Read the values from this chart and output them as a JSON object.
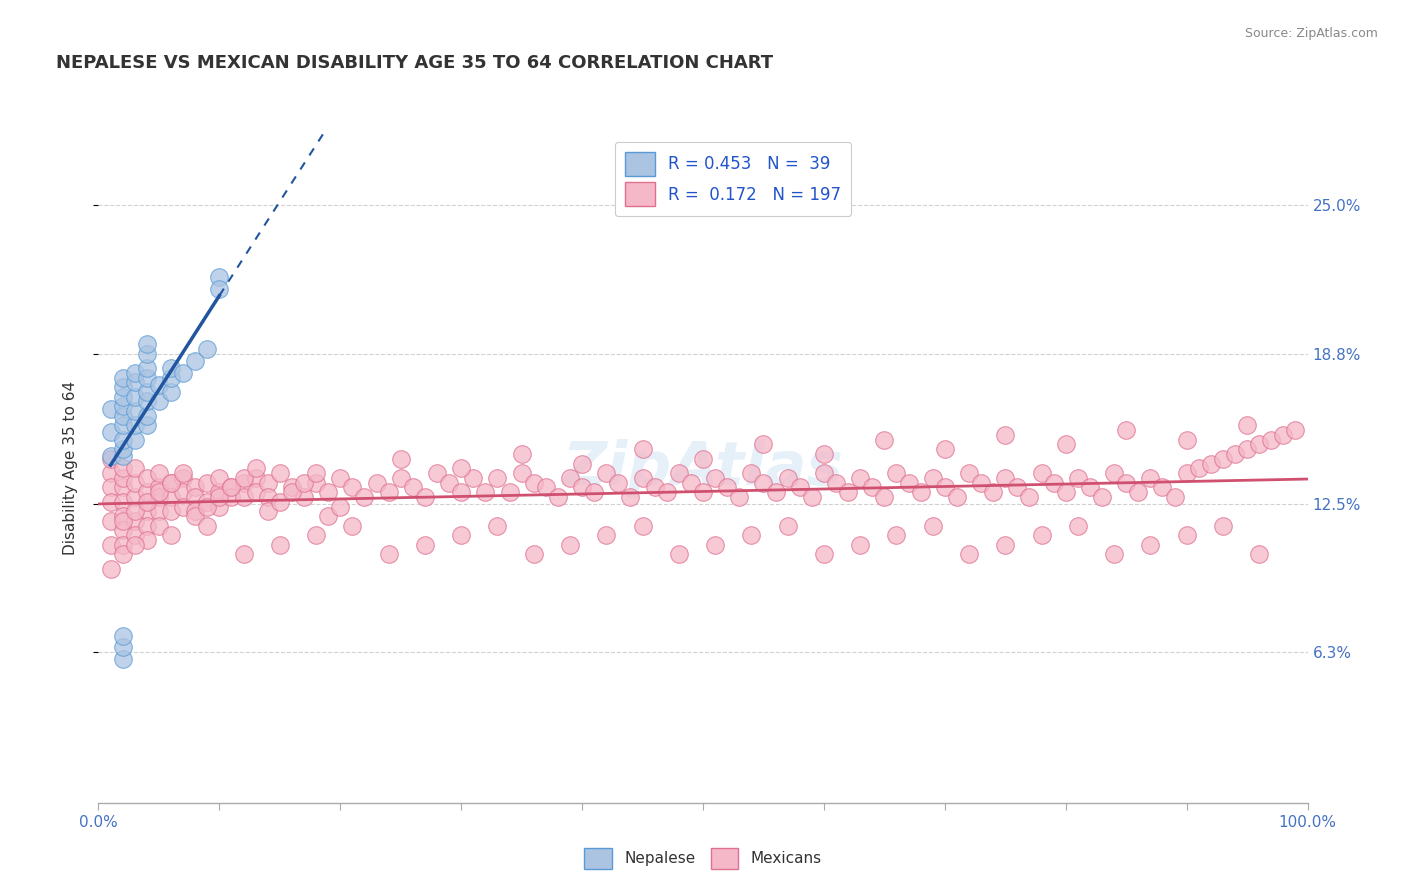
{
  "title": "NEPALESE VS MEXICAN DISABILITY AGE 35 TO 64 CORRELATION CHART",
  "source_text": "Source: ZipAtlas.com",
  "ylabel": "Disability Age 35 to 64",
  "xmin": 0.0,
  "xmax": 1.0,
  "ymin": 0.0,
  "ymax": 0.28,
  "ytick_vals": [
    0.063,
    0.125,
    0.188,
    0.25
  ],
  "ytick_labels": [
    "6.3%",
    "12.5%",
    "18.8%",
    "25.0%"
  ],
  "xtick_vals": [
    0.0,
    0.1,
    0.2,
    0.3,
    0.4,
    0.5,
    0.6,
    0.7,
    0.8,
    0.9,
    1.0
  ],
  "xlabels_show": {
    "0.0": "0.0%",
    "1.0": "100.0%"
  },
  "nepalese_color": "#aac4e2",
  "nepalese_edge_color": "#5b9bd5",
  "mexican_color": "#f4b8c8",
  "mexican_edge_color": "#e07090",
  "nepalese_R": 0.453,
  "nepalese_N": 39,
  "mexican_R": 0.172,
  "mexican_N": 197,
  "blue_line_color": "#2255a0",
  "pink_line_color": "#d05070",
  "legend_text_color": "#2255cc",
  "title_color": "#333333",
  "grid_color": "#cccccc",
  "background_color": "#ffffff",
  "nepalese_x": [
    0.01,
    0.01,
    0.01,
    0.02,
    0.02,
    0.02,
    0.02,
    0.02,
    0.02,
    0.02,
    0.02,
    0.02,
    0.02,
    0.03,
    0.03,
    0.03,
    0.03,
    0.03,
    0.03,
    0.04,
    0.04,
    0.04,
    0.04,
    0.04,
    0.04,
    0.04,
    0.04,
    0.05,
    0.05,
    0.06,
    0.06,
    0.06,
    0.07,
    0.08,
    0.09,
    0.1,
    0.1,
    0.02,
    0.02
  ],
  "nepalese_y": [
    0.145,
    0.155,
    0.165,
    0.145,
    0.148,
    0.152,
    0.158,
    0.162,
    0.166,
    0.17,
    0.174,
    0.178,
    0.06,
    0.152,
    0.158,
    0.164,
    0.17,
    0.176,
    0.18,
    0.158,
    0.162,
    0.168,
    0.172,
    0.178,
    0.182,
    0.188,
    0.192,
    0.168,
    0.175,
    0.172,
    0.178,
    0.182,
    0.18,
    0.185,
    0.19,
    0.22,
    0.215,
    0.065,
    0.07
  ],
  "mexican_x": [
    0.01,
    0.01,
    0.01,
    0.01,
    0.01,
    0.01,
    0.01,
    0.02,
    0.02,
    0.02,
    0.02,
    0.02,
    0.02,
    0.02,
    0.02,
    0.03,
    0.03,
    0.03,
    0.03,
    0.03,
    0.04,
    0.04,
    0.04,
    0.04,
    0.04,
    0.05,
    0.05,
    0.05,
    0.05,
    0.05,
    0.06,
    0.06,
    0.06,
    0.07,
    0.07,
    0.07,
    0.08,
    0.08,
    0.08,
    0.09,
    0.09,
    0.1,
    0.1,
    0.1,
    0.11,
    0.11,
    0.12,
    0.12,
    0.13,
    0.13,
    0.14,
    0.14,
    0.15,
    0.16,
    0.17,
    0.18,
    0.19,
    0.2,
    0.21,
    0.22,
    0.23,
    0.24,
    0.25,
    0.26,
    0.27,
    0.28,
    0.29,
    0.3,
    0.31,
    0.32,
    0.33,
    0.34,
    0.35,
    0.36,
    0.37,
    0.38,
    0.39,
    0.4,
    0.41,
    0.42,
    0.43,
    0.44,
    0.45,
    0.46,
    0.47,
    0.48,
    0.49,
    0.5,
    0.51,
    0.52,
    0.53,
    0.54,
    0.55,
    0.56,
    0.57,
    0.58,
    0.59,
    0.6,
    0.61,
    0.62,
    0.63,
    0.64,
    0.65,
    0.66,
    0.67,
    0.68,
    0.69,
    0.7,
    0.71,
    0.72,
    0.73,
    0.74,
    0.75,
    0.76,
    0.77,
    0.78,
    0.79,
    0.8,
    0.81,
    0.82,
    0.83,
    0.84,
    0.85,
    0.86,
    0.87,
    0.88,
    0.89,
    0.9,
    0.91,
    0.92,
    0.93,
    0.94,
    0.95,
    0.96,
    0.97,
    0.98,
    0.99,
    0.02,
    0.03,
    0.04,
    0.05,
    0.06,
    0.07,
    0.08,
    0.09,
    0.1,
    0.11,
    0.12,
    0.13,
    0.14,
    0.15,
    0.16,
    0.17,
    0.18,
    0.19,
    0.2,
    0.25,
    0.3,
    0.35,
    0.4,
    0.45,
    0.5,
    0.55,
    0.6,
    0.65,
    0.7,
    0.75,
    0.8,
    0.85,
    0.9,
    0.95,
    0.03,
    0.06,
    0.09,
    0.12,
    0.15,
    0.18,
    0.21,
    0.24,
    0.27,
    0.3,
    0.33,
    0.36,
    0.39,
    0.42,
    0.45,
    0.48,
    0.51,
    0.54,
    0.57,
    0.6,
    0.63,
    0.66,
    0.69,
    0.72,
    0.75,
    0.78,
    0.81,
    0.84,
    0.87,
    0.9,
    0.93,
    0.96
  ],
  "mexican_y": [
    0.138,
    0.132,
    0.126,
    0.144,
    0.118,
    0.108,
    0.098,
    0.132,
    0.136,
    0.14,
    0.126,
    0.12,
    0.114,
    0.108,
    0.104,
    0.128,
    0.134,
    0.14,
    0.118,
    0.112,
    0.13,
    0.136,
    0.122,
    0.116,
    0.11,
    0.132,
    0.138,
    0.128,
    0.122,
    0.116,
    0.134,
    0.128,
    0.122,
    0.136,
    0.13,
    0.124,
    0.132,
    0.128,
    0.122,
    0.134,
    0.126,
    0.13,
    0.136,
    0.124,
    0.132,
    0.128,
    0.134,
    0.128,
    0.136,
    0.13,
    0.134,
    0.128,
    0.138,
    0.132,
    0.128,
    0.134,
    0.13,
    0.136,
    0.132,
    0.128,
    0.134,
    0.13,
    0.136,
    0.132,
    0.128,
    0.138,
    0.134,
    0.13,
    0.136,
    0.13,
    0.136,
    0.13,
    0.138,
    0.134,
    0.132,
    0.128,
    0.136,
    0.132,
    0.13,
    0.138,
    0.134,
    0.128,
    0.136,
    0.132,
    0.13,
    0.138,
    0.134,
    0.13,
    0.136,
    0.132,
    0.128,
    0.138,
    0.134,
    0.13,
    0.136,
    0.132,
    0.128,
    0.138,
    0.134,
    0.13,
    0.136,
    0.132,
    0.128,
    0.138,
    0.134,
    0.13,
    0.136,
    0.132,
    0.128,
    0.138,
    0.134,
    0.13,
    0.136,
    0.132,
    0.128,
    0.138,
    0.134,
    0.13,
    0.136,
    0.132,
    0.128,
    0.138,
    0.134,
    0.13,
    0.136,
    0.132,
    0.128,
    0.138,
    0.14,
    0.142,
    0.144,
    0.146,
    0.148,
    0.15,
    0.152,
    0.154,
    0.156,
    0.118,
    0.122,
    0.126,
    0.13,
    0.134,
    0.138,
    0.12,
    0.124,
    0.128,
    0.132,
    0.136,
    0.14,
    0.122,
    0.126,
    0.13,
    0.134,
    0.138,
    0.12,
    0.124,
    0.144,
    0.14,
    0.146,
    0.142,
    0.148,
    0.144,
    0.15,
    0.146,
    0.152,
    0.148,
    0.154,
    0.15,
    0.156,
    0.152,
    0.158,
    0.108,
    0.112,
    0.116,
    0.104,
    0.108,
    0.112,
    0.116,
    0.104,
    0.108,
    0.112,
    0.116,
    0.104,
    0.108,
    0.112,
    0.116,
    0.104,
    0.108,
    0.112,
    0.116,
    0.104,
    0.108,
    0.112,
    0.116,
    0.104,
    0.108,
    0.112,
    0.116,
    0.104,
    0.108,
    0.112,
    0.116,
    0.104
  ]
}
